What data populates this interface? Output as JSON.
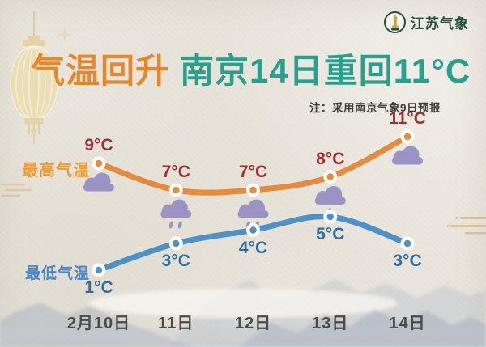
{
  "brand": {
    "name": "江苏气象",
    "color": "#234d3a",
    "logo_gold": "#c9a13e"
  },
  "title": {
    "part1": "气温回升",
    "part1_color": "#e5882c",
    "part2": "南京14日重回11°C",
    "part2_color": "#27a08e"
  },
  "note": {
    "text": "注：采用南京气象9日预报",
    "color": "#3e3d39"
  },
  "chart_data": {
    "type": "line",
    "categories": [
      "2月10日",
      "11日",
      "12日",
      "13日",
      "14日"
    ],
    "x_label_color": "#4b4a47",
    "ylim": [
      0,
      12
    ],
    "grid": false,
    "legend_position": "left",
    "icon_color": "#9b93c4",
    "series": [
      {
        "name": "最高气温",
        "role": "max",
        "values": [
          9,
          7,
          7,
          8,
          11
        ],
        "point_labels": [
          "9°C",
          "7°C",
          "7°C",
          "8°C",
          "11°C"
        ],
        "line_color": "#e58b40",
        "label_color": "#9e2f30",
        "name_color": "#f09a33",
        "label_side": "above"
      },
      {
        "name": "最低气温",
        "role": "min",
        "values": [
          1,
          3,
          4,
          5,
          3
        ],
        "point_labels": [
          "1°C",
          "3°C",
          "4°C",
          "5°C",
          "3°C"
        ],
        "line_color": "#4f90c6",
        "label_color": "#2e6d9d",
        "name_color": "#4b87c1",
        "label_side": "below"
      }
    ],
    "weather_icons": [
      "cloud",
      "rain-2",
      "rain-2",
      "rain-1",
      "cloud"
    ]
  }
}
